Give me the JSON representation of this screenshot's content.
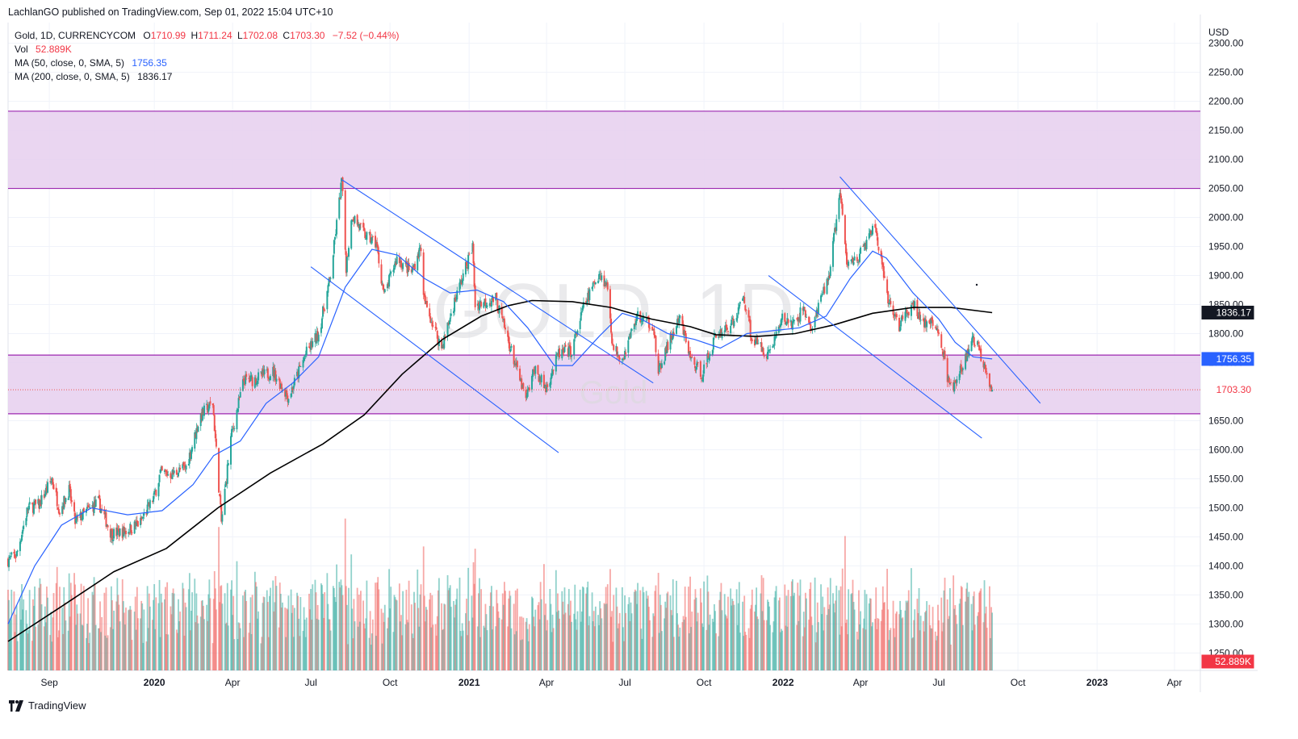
{
  "header": {
    "published": "LachlanGO published on TradingView.com, Sep 01, 2022 15:04 UTC+10"
  },
  "legend": {
    "symbol": "Gold, 1D, CURRENCYCOM",
    "o_label": "O",
    "o_val": "1710.99",
    "h_label": "H",
    "h_val": "1711.24",
    "l_label": "L",
    "l_val": "1702.08",
    "c_label": "C",
    "c_val": "1703.30",
    "change": "−7.52 (−0.44%)",
    "vol_label": "Vol",
    "vol_val": "52.889K",
    "ma50_label": "MA (50, close, 0, SMA, 5)",
    "ma50_val": "1756.35",
    "ma200_label": "MA (200, close, 0, SMA, 5)",
    "ma200_val": "1836.17"
  },
  "watermark": {
    "symbol": "GOLD, 1D",
    "name": "Gold"
  },
  "footer": {
    "brand": "TradingView"
  },
  "colors": {
    "up": "#26a69a",
    "down": "#ef5350",
    "ma50": "#2962ff",
    "ma200": "#000000",
    "zone_fill": "#e6cfee",
    "zone_line": "#9c27b0",
    "trendline": "#2962ff"
  },
  "chart_data": {
    "type": "candlestick",
    "currency": "USD",
    "y_axis": {
      "ylim": [
        1220,
        2330
      ],
      "ticks": [
        1250,
        1300,
        1350,
        1400,
        1450,
        1500,
        1550,
        1600,
        1650,
        1700,
        1750,
        1800,
        1850,
        1900,
        1950,
        2000,
        2050,
        2100,
        2150,
        2200,
        2250,
        2300
      ]
    },
    "x_axis": {
      "range": [
        "2019-07-15",
        "2023-05-01"
      ],
      "ticks": [
        {
          "label": "Sep",
          "date": "2019-09-01",
          "year": false
        },
        {
          "label": "2020",
          "date": "2020-01-01",
          "year": true
        },
        {
          "label": "Apr",
          "date": "2020-04-01",
          "year": false
        },
        {
          "label": "Jul",
          "date": "2020-07-01",
          "year": false
        },
        {
          "label": "Oct",
          "date": "2020-10-01",
          "year": false
        },
        {
          "label": "2021",
          "date": "2021-01-01",
          "year": true
        },
        {
          "label": "Apr",
          "date": "2021-04-01",
          "year": false
        },
        {
          "label": "Jul",
          "date": "2021-07-01",
          "year": false
        },
        {
          "label": "Oct",
          "date": "2021-10-01",
          "year": false
        },
        {
          "label": "2022",
          "date": "2022-01-01",
          "year": true
        },
        {
          "label": "Apr",
          "date": "2022-04-01",
          "year": false
        },
        {
          "label": "Jul",
          "date": "2022-07-01",
          "year": false
        },
        {
          "label": "Oct",
          "date": "2022-10-01",
          "year": false
        },
        {
          "label": "2023",
          "date": "2023-01-01",
          "year": true
        },
        {
          "label": "Apr",
          "date": "2023-04-01",
          "year": false
        }
      ]
    },
    "grid": true,
    "price_path": [
      [
        "2019-07-15",
        1410
      ],
      [
        "2019-07-25",
        1420
      ],
      [
        "2019-08-07",
        1500
      ],
      [
        "2019-08-20",
        1505
      ],
      [
        "2019-09-04",
        1550
      ],
      [
        "2019-09-13",
        1495
      ],
      [
        "2019-09-24",
        1530
      ],
      [
        "2019-10-01",
        1475
      ],
      [
        "2019-10-15",
        1495
      ],
      [
        "2019-10-28",
        1510
      ],
      [
        "2019-11-12",
        1455
      ],
      [
        "2019-11-29",
        1460
      ],
      [
        "2019-12-16",
        1475
      ],
      [
        "2020-01-01",
        1520
      ],
      [
        "2020-01-08",
        1560
      ],
      [
        "2020-01-22",
        1558
      ],
      [
        "2020-02-07",
        1570
      ],
      [
        "2020-02-24",
        1660
      ],
      [
        "2020-03-09",
        1680
      ],
      [
        "2020-03-19",
        1475
      ],
      [
        "2020-03-30",
        1620
      ],
      [
        "2020-04-14",
        1720
      ],
      [
        "2020-04-24",
        1720
      ],
      [
        "2020-05-18",
        1735
      ],
      [
        "2020-06-05",
        1690
      ],
      [
        "2020-06-25",
        1765
      ],
      [
        "2020-07-10",
        1800
      ],
      [
        "2020-07-24",
        1900
      ],
      [
        "2020-08-06",
        2065
      ],
      [
        "2020-08-11",
        1915
      ],
      [
        "2020-08-18",
        2005
      ],
      [
        "2020-09-01",
        1970
      ],
      [
        "2020-09-15",
        1955
      ],
      [
        "2020-09-24",
        1865
      ],
      [
        "2020-10-09",
        1930
      ],
      [
        "2020-10-26",
        1905
      ],
      [
        "2020-11-06",
        1950
      ],
      [
        "2020-11-09",
        1860
      ],
      [
        "2020-11-30",
        1775
      ],
      [
        "2020-12-15",
        1855
      ],
      [
        "2021-01-05",
        1950
      ],
      [
        "2021-01-08",
        1850
      ],
      [
        "2021-02-01",
        1860
      ],
      [
        "2021-02-26",
        1735
      ],
      [
        "2021-03-08",
        1685
      ],
      [
        "2021-03-18",
        1740
      ],
      [
        "2021-03-31",
        1705
      ],
      [
        "2021-04-15",
        1765
      ],
      [
        "2021-04-30",
        1770
      ],
      [
        "2021-05-14",
        1845
      ],
      [
        "2021-06-01",
        1905
      ],
      [
        "2021-06-11",
        1880
      ],
      [
        "2021-06-17",
        1775
      ],
      [
        "2021-06-29",
        1760
      ],
      [
        "2021-07-15",
        1830
      ],
      [
        "2021-08-03",
        1815
      ],
      [
        "2021-08-09",
        1730
      ],
      [
        "2021-08-20",
        1780
      ],
      [
        "2021-09-03",
        1825
      ],
      [
        "2021-09-16",
        1755
      ],
      [
        "2021-09-29",
        1730
      ],
      [
        "2021-10-14",
        1795
      ],
      [
        "2021-11-05",
        1820
      ],
      [
        "2021-11-16",
        1865
      ],
      [
        "2021-11-26",
        1790
      ],
      [
        "2021-12-15",
        1765
      ],
      [
        "2021-12-31",
        1825
      ],
      [
        "2022-01-14",
        1815
      ],
      [
        "2022-01-25",
        1845
      ],
      [
        "2022-02-03",
        1805
      ],
      [
        "2022-02-24",
        1905
      ],
      [
        "2022-03-08",
        2045
      ],
      [
        "2022-03-16",
        1920
      ],
      [
        "2022-03-31",
        1935
      ],
      [
        "2022-04-18",
        1985
      ],
      [
        "2022-05-02",
        1860
      ],
      [
        "2022-05-16",
        1815
      ],
      [
        "2022-06-01",
        1850
      ],
      [
        "2022-06-13",
        1820
      ],
      [
        "2022-06-30",
        1810
      ],
      [
        "2022-07-14",
        1705
      ],
      [
        "2022-07-21",
        1715
      ],
      [
        "2022-08-10",
        1790
      ],
      [
        "2022-08-16",
        1775
      ],
      [
        "2022-08-26",
        1735
      ],
      [
        "2022-09-01",
        1703.3
      ]
    ],
    "ma50_path": [
      [
        "2019-07-15",
        1300
      ],
      [
        "2019-08-15",
        1400
      ],
      [
        "2019-09-15",
        1470
      ],
      [
        "2019-10-20",
        1500
      ],
      [
        "2019-12-01",
        1488
      ],
      [
        "2020-01-10",
        1495
      ],
      [
        "2020-02-15",
        1540
      ],
      [
        "2020-03-10",
        1590
      ],
      [
        "2020-04-10",
        1615
      ],
      [
        "2020-05-10",
        1680
      ],
      [
        "2020-06-10",
        1715
      ],
      [
        "2020-07-10",
        1760
      ],
      [
        "2020-08-10",
        1880
      ],
      [
        "2020-09-10",
        1945
      ],
      [
        "2020-10-10",
        1935
      ],
      [
        "2020-11-10",
        1895
      ],
      [
        "2020-12-10",
        1870
      ],
      [
        "2021-01-10",
        1875
      ],
      [
        "2021-02-10",
        1855
      ],
      [
        "2021-03-10",
        1810
      ],
      [
        "2021-04-10",
        1745
      ],
      [
        "2021-05-01",
        1745
      ],
      [
        "2021-06-01",
        1795
      ],
      [
        "2021-06-28",
        1835
      ],
      [
        "2021-07-20",
        1825
      ],
      [
        "2021-08-20",
        1800
      ],
      [
        "2021-09-20",
        1790
      ],
      [
        "2021-10-20",
        1775
      ],
      [
        "2021-11-20",
        1800
      ],
      [
        "2021-12-20",
        1805
      ],
      [
        "2022-01-20",
        1810
      ],
      [
        "2022-02-20",
        1830
      ],
      [
        "2022-03-20",
        1895
      ],
      [
        "2022-04-15",
        1942
      ],
      [
        "2022-05-01",
        1930
      ],
      [
        "2022-06-01",
        1870
      ],
      [
        "2022-07-01",
        1825
      ],
      [
        "2022-07-20",
        1785
      ],
      [
        "2022-08-10",
        1760
      ],
      [
        "2022-09-01",
        1756.35
      ]
    ],
    "ma200_path": [
      [
        "2019-07-15",
        1270
      ],
      [
        "2019-09-15",
        1330
      ],
      [
        "2019-11-15",
        1390
      ],
      [
        "2020-01-15",
        1430
      ],
      [
        "2020-03-15",
        1500
      ],
      [
        "2020-05-15",
        1560
      ],
      [
        "2020-07-15",
        1610
      ],
      [
        "2020-09-01",
        1660
      ],
      [
        "2020-10-15",
        1730
      ],
      [
        "2020-12-01",
        1790
      ],
      [
        "2021-01-15",
        1830
      ],
      [
        "2021-02-15",
        1848
      ],
      [
        "2021-03-15",
        1857
      ],
      [
        "2021-05-01",
        1855
      ],
      [
        "2021-06-15",
        1845
      ],
      [
        "2021-08-01",
        1825
      ],
      [
        "2021-09-15",
        1812
      ],
      [
        "2021-10-15",
        1798
      ],
      [
        "2021-12-01",
        1795
      ],
      [
        "2022-01-15",
        1800
      ],
      [
        "2022-03-01",
        1815
      ],
      [
        "2022-04-15",
        1835
      ],
      [
        "2022-06-01",
        1845
      ],
      [
        "2022-07-15",
        1845
      ],
      [
        "2022-09-01",
        1836.17
      ]
    ],
    "zones": [
      {
        "low": 2050,
        "high": 2183
      },
      {
        "low": 1662,
        "high": 1763
      }
    ],
    "trendlines": [
      {
        "from": [
          "2020-08-06",
          2065
        ],
        "to": [
          "2021-08-03",
          1715
        ]
      },
      {
        "from": [
          "2020-07-01",
          1915
        ],
        "to": [
          "2021-04-15",
          1595
        ]
      },
      {
        "from": [
          "2022-03-08",
          2070
        ],
        "to": [
          "2022-10-27",
          1680
        ]
      },
      {
        "from": [
          "2021-12-15",
          1900
        ],
        "to": [
          "2022-08-20",
          1620
        ]
      }
    ],
    "volume": {
      "unit": "K",
      "last": 52.889
    },
    "price_tags": [
      {
        "label": "1836.17",
        "value": 1836.17,
        "kind": "ma200"
      },
      {
        "label": "1756.35",
        "value": 1756.35,
        "kind": "ma50"
      },
      {
        "label": "1703.30",
        "value": 1703.3,
        "kind": "last"
      },
      {
        "label": "52.889K",
        "value": 1242,
        "kind": "vol"
      }
    ]
  }
}
